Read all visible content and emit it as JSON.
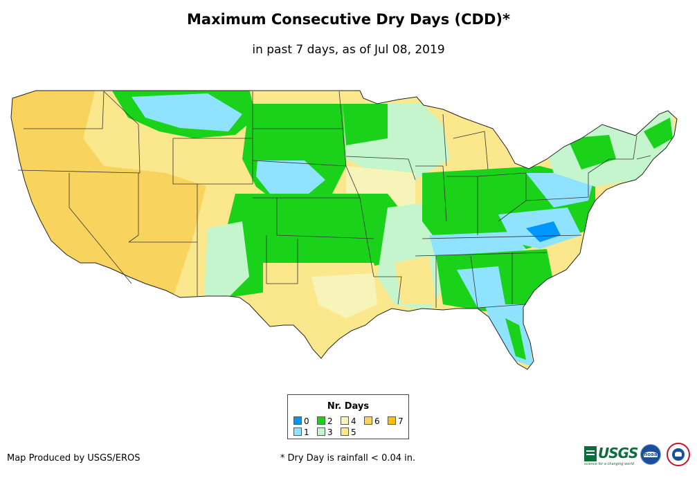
{
  "title": "Maximum Consecutive Dry Days (CDD)*",
  "subtitle": "in past 7 days, as of Jul 08, 2019",
  "legend": {
    "title": "Nr. Days",
    "items": [
      {
        "label": "0",
        "color": "#0096ff"
      },
      {
        "label": "1",
        "color": "#8fe3ff"
      },
      {
        "label": "2",
        "color": "#1ad21a"
      },
      {
        "label": "3",
        "color": "#c4f5cc"
      },
      {
        "label": "4",
        "color": "#f7f4ba"
      },
      {
        "label": "5",
        "color": "#fbe78c"
      },
      {
        "label": "6",
        "color": "#f8d35e"
      },
      {
        "label": "7",
        "color": "#ffc000"
      }
    ]
  },
  "credit": "Map Produced by USGS/EROS",
  "footnote": "* Dry Day is rainfall < 0.04 in.",
  "logos": {
    "usgs_text": "USGS",
    "usgs_tagline": "science for a changing world",
    "noaa_text": "noaa"
  }
}
